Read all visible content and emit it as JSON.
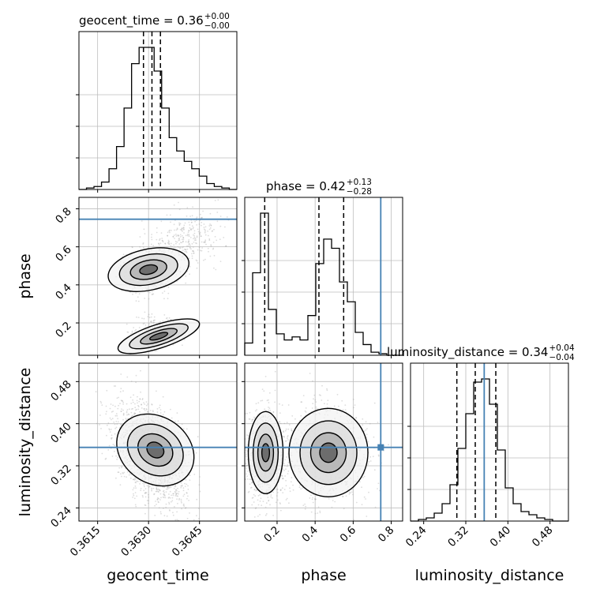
{
  "chart_data": {
    "type": "corner",
    "parameters": [
      "geocent_time",
      "phase",
      "luminosity_distance"
    ],
    "axis_labels": {
      "x": [
        "geocent_time",
        "phase",
        "luminosity_distance"
      ],
      "y": [
        "phase",
        "luminosity_distance"
      ]
    },
    "titles": [
      {
        "param": "geocent_time",
        "prefix": "geocent_time = 0.36",
        "up": "+0.00",
        "down": "−0.00"
      },
      {
        "param": "phase",
        "prefix": "phase = 0.42",
        "up": "+0.13",
        "down": "−0.28"
      },
      {
        "param": "luminosity_distance",
        "prefix": "luminosity_distance = 0.34",
        "up": "+0.04",
        "down": "−0.04"
      }
    ],
    "ranges": {
      "geocent_time": [
        0.36095,
        0.3656
      ],
      "phase": [
        0.03,
        0.86
      ],
      "luminosity_distance": [
        0.215,
        0.515
      ]
    },
    "ticks": {
      "geocent_time": {
        "values": [
          0.3615,
          0.363,
          0.3645
        ],
        "labels": [
          "0.3615",
          "0.3630",
          "0.3645"
        ]
      },
      "phase": {
        "values": [
          0.2,
          0.4,
          0.6,
          0.8
        ],
        "labels": [
          "0.2",
          "0.4",
          "0.6",
          "0.8"
        ]
      },
      "luminosity_distance": {
        "values": [
          0.24,
          0.32,
          0.4,
          0.48
        ],
        "labels": [
          "0.24",
          "0.32",
          "0.40",
          "0.48"
        ]
      }
    },
    "truths": {
      "geocent_time": null,
      "phase": 0.745,
      "luminosity_distance": 0.355
    },
    "truth_color": "#4682b4",
    "quantiles": {
      "geocent_time": [
        0.36285,
        0.3631,
        0.36335
      ],
      "phase": [
        0.135,
        0.42,
        0.55
      ],
      "luminosity_distance": [
        0.303,
        0.338,
        0.377
      ]
    },
    "histograms": {
      "geocent_time": {
        "edges": [
          0.36095,
          0.3656
        ],
        "counts": [
          0,
          1,
          2,
          5,
          14,
          29,
          55,
          85,
          96,
          96,
          80,
          55,
          35,
          26,
          19,
          14,
          9,
          4,
          2,
          1,
          0
        ]
      },
      "phase": {
        "edges": [
          0.03,
          0.86
        ],
        "counts": [
          8,
          54,
          93,
          30,
          14,
          10,
          12,
          10,
          26,
          60,
          76,
          70,
          48,
          35,
          15,
          7,
          2,
          1,
          0,
          0
        ]
      },
      "luminosity_distance": {
        "edges": [
          0.215,
          0.515
        ],
        "counts": [
          0,
          1,
          2,
          5,
          11,
          23,
          46,
          68,
          88,
          90,
          74,
          45,
          21,
          11,
          6,
          4,
          2,
          1,
          0,
          0
        ]
      }
    },
    "grid": true
  }
}
